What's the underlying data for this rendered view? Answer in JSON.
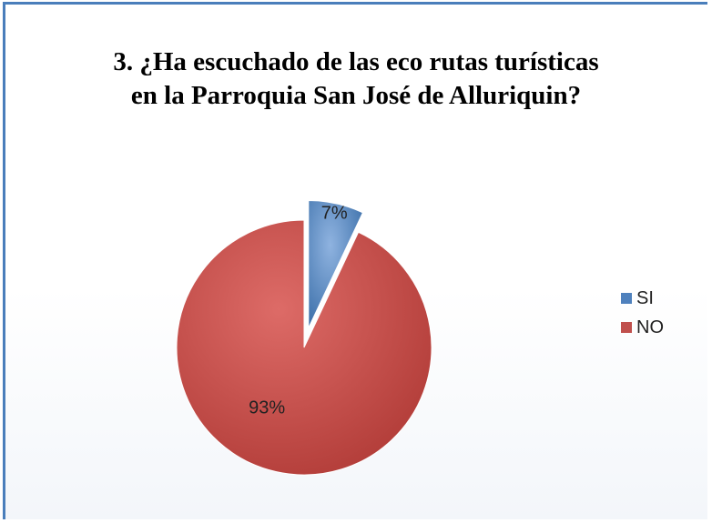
{
  "chart_data": {
    "type": "pie",
    "title_lines": [
      "3.  ¿Ha escuchado de las eco rutas turísticas",
      "en la Parroquia San  José de Alluriquin?"
    ],
    "slices": [
      {
        "label": "SI",
        "value": 7,
        "display": "7%",
        "color": "#4f81bd",
        "exploded": true
      },
      {
        "label": "NO",
        "value": 93,
        "display": "93%",
        "color": "#c0504d",
        "exploded": false
      }
    ],
    "legend_position": "right"
  }
}
